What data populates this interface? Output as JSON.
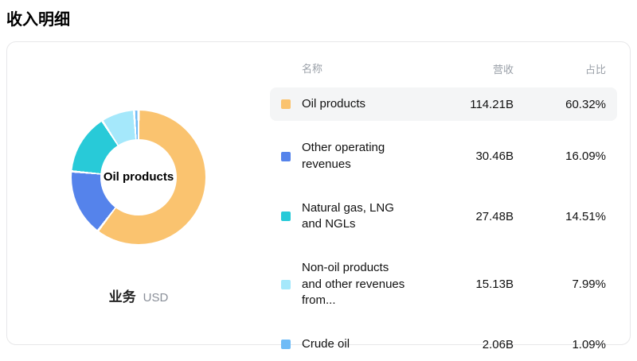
{
  "page": {
    "title": "收入明细"
  },
  "chart_data": {
    "type": "pie",
    "subtype": "donut",
    "title": "收入明细",
    "center_label": "Oil products",
    "footer_label": "业务",
    "footer_unit": "USD",
    "start_angle": "top",
    "direction": "clockwise",
    "series": [
      {
        "name": "Oil products",
        "value": 60.32,
        "revenue": "114.21B",
        "share": "60.32%",
        "color": "#FAC36F"
      },
      {
        "name": "Other operating revenues",
        "value": 16.09,
        "revenue": "30.46B",
        "share": "16.09%",
        "color": "#5583EB"
      },
      {
        "name": "Natural gas, LNG and NGLs",
        "value": 14.51,
        "revenue": "27.48B",
        "share": "14.51%",
        "color": "#28CAD8"
      },
      {
        "name": "Non-oil products and other revenues from...",
        "value": 7.99,
        "revenue": "15.13B",
        "share": "7.99%",
        "color": "#A5E8FB"
      },
      {
        "name": "Crude oil",
        "value": 1.09,
        "revenue": "2.06B",
        "share": "1.09%",
        "color": "#6FBBF6"
      }
    ]
  },
  "table": {
    "headers": {
      "name": "名称",
      "revenue": "营收",
      "share": "占比"
    }
  }
}
